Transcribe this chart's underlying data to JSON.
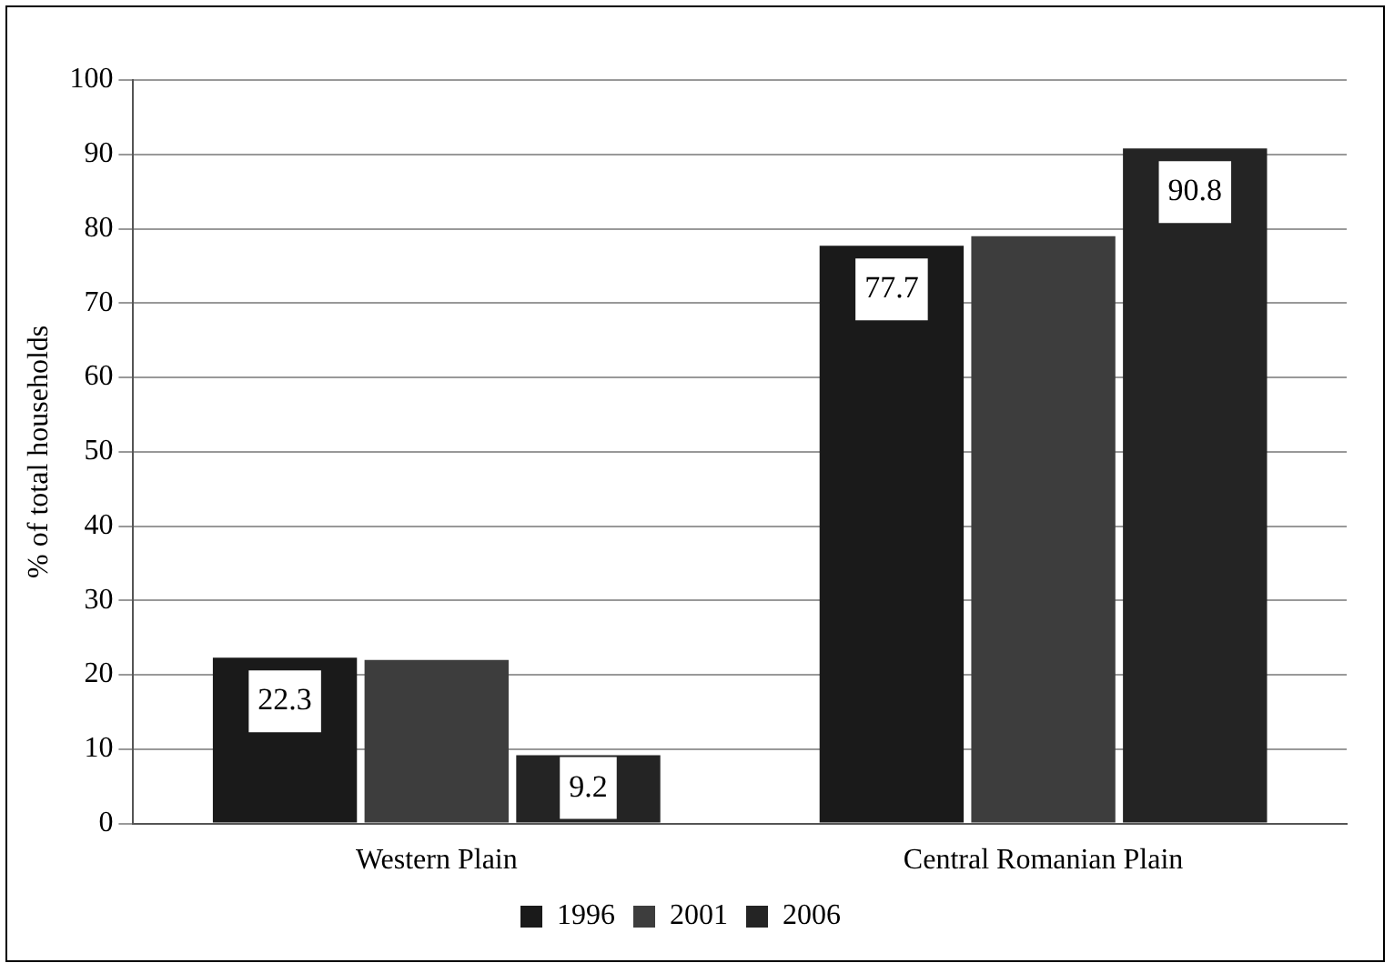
{
  "chart_data": {
    "type": "bar",
    "ylabel": "% of total households",
    "categories": [
      "Western Plain",
      "Central Romanian Plain"
    ],
    "series": [
      {
        "name": "1996",
        "color": "#1a1a1a",
        "values": [
          22.3,
          77.7
        ],
        "value_labels": [
          "22.3",
          "77.7"
        ]
      },
      {
        "name": "2001",
        "color": "#3d3d3d",
        "values": [
          22,
          79
        ],
        "value_labels": [
          null,
          null
        ]
      },
      {
        "name": "2006",
        "color": "#242424",
        "values": [
          9.2,
          90.8
        ],
        "value_labels": [
          "9.2",
          "90.8"
        ]
      }
    ],
    "ylim": [
      0,
      100
    ],
    "yticks": [
      0,
      10,
      20,
      30,
      40,
      50,
      60,
      70,
      80,
      90,
      100
    ],
    "grid": "y",
    "legend": "bottom"
  }
}
